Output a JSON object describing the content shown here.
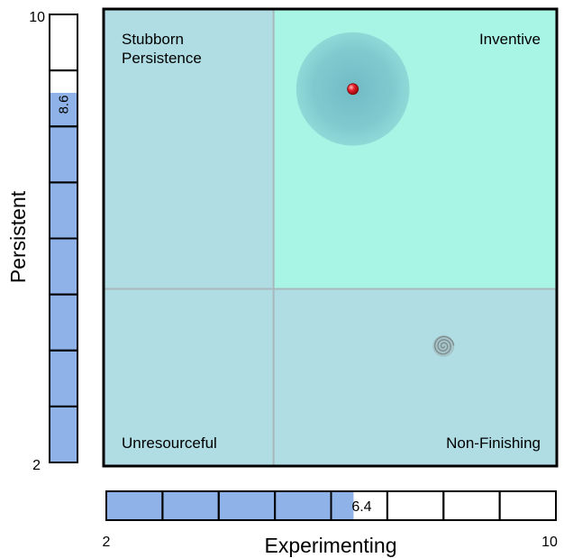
{
  "chart_data": {
    "type": "scatter",
    "xlabel": "Experimenting",
    "ylabel": "Persistent",
    "xlim": [
      2,
      10
    ],
    "ylim": [
      2,
      10
    ],
    "x_tick_labels": [
      "2",
      "10"
    ],
    "y_tick_labels": [
      "2",
      "10"
    ],
    "x_divider": 5,
    "y_divider": 5.1,
    "quadrants": {
      "top_left": "Stubborn Persistence",
      "top_right": "Inventive",
      "bottom_left": "Unresourceful",
      "bottom_right": "Non-Finishing"
    },
    "highlighted_quadrant": "top_right",
    "point": {
      "x": 6.4,
      "y": 8.6,
      "label_x": "6.4",
      "label_y": "8.6",
      "uncertainty_radius": 2
    },
    "secondary_marker": {
      "x": 8,
      "y": 4.1,
      "icon": "spiral-icon"
    },
    "gauge_segments": 8,
    "colors": {
      "quadrant_fill": "#afdde3",
      "highlight_fill": "#a8f5e6",
      "halo": "#5fa7bc",
      "point": "#e8202a",
      "gauge_fill": "#8fb3e8",
      "divider": "#a9b8bd"
    }
  }
}
